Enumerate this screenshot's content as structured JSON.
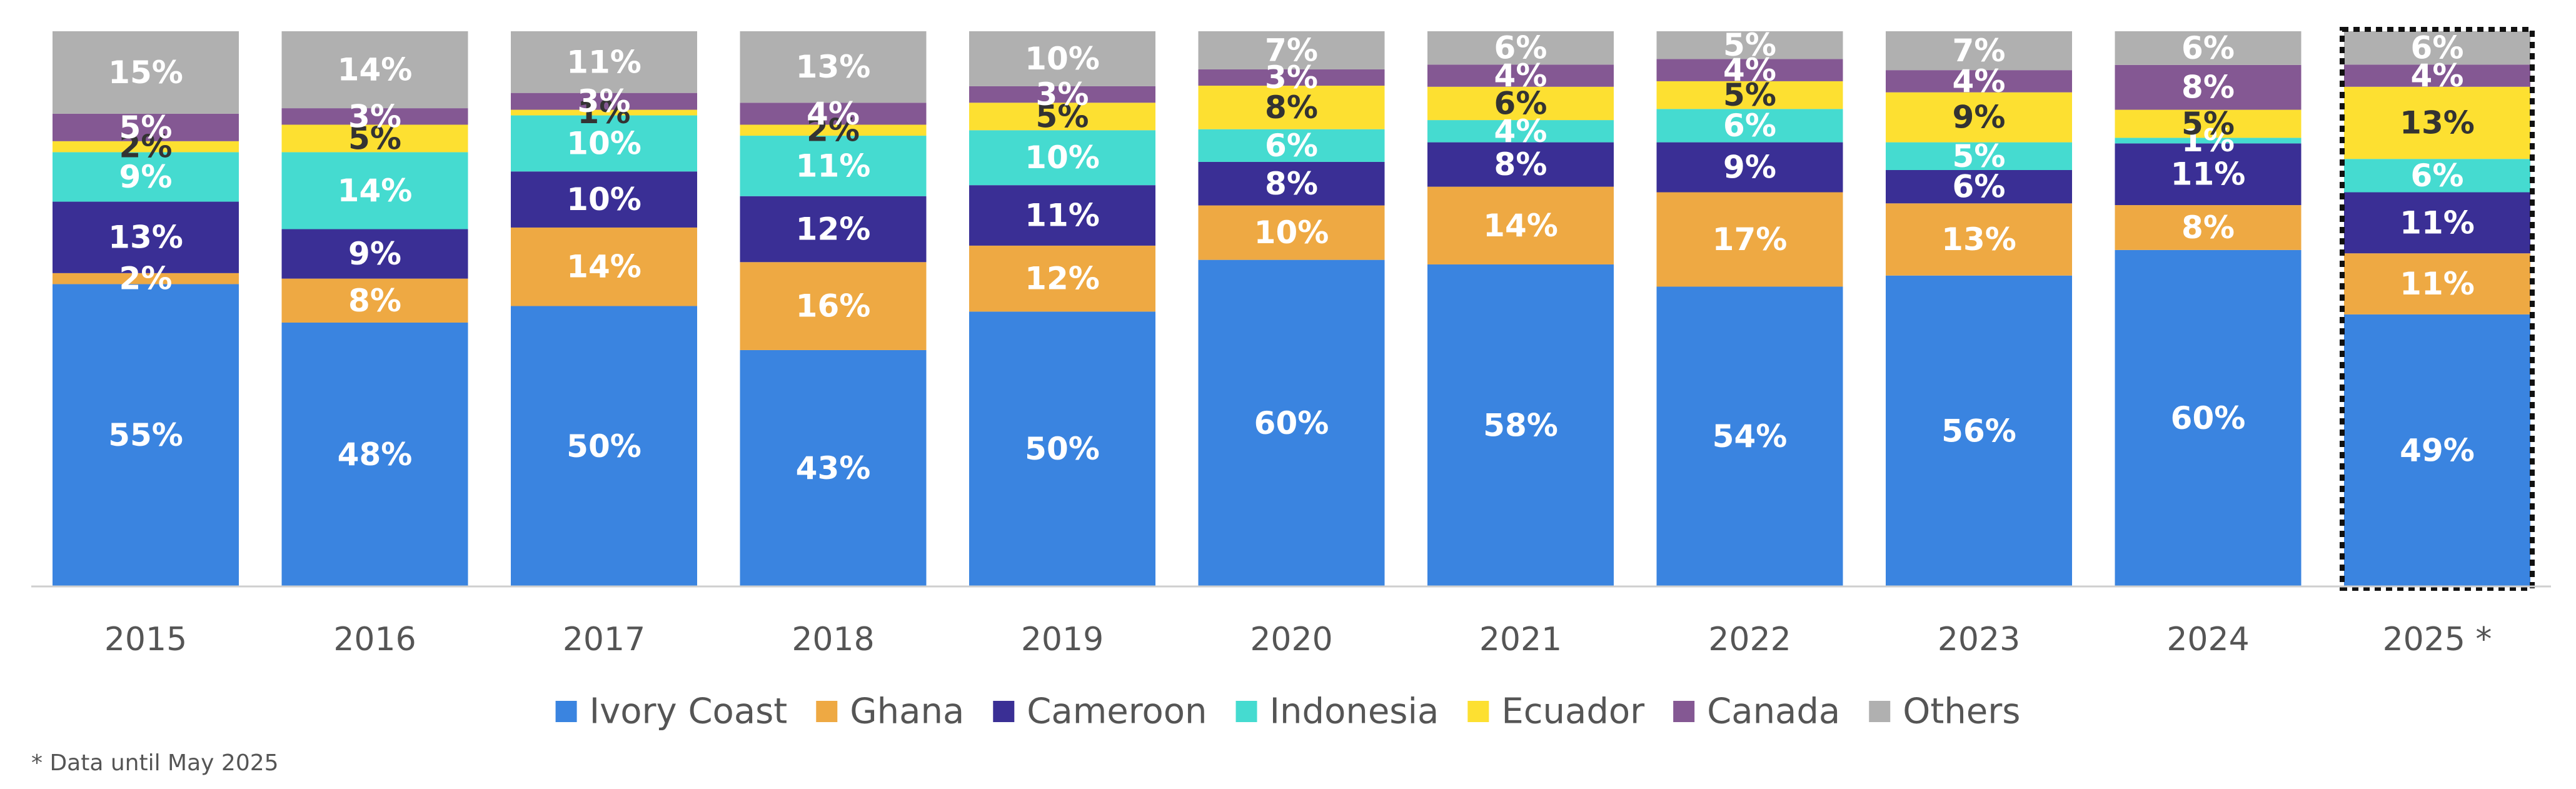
{
  "chart_data": {
    "type": "bar",
    "stacked": true,
    "percent_stacked": true,
    "categories": [
      "2015",
      "2016",
      "2017",
      "2018",
      "2019",
      "2020",
      "2021",
      "2022",
      "2023",
      "2024",
      "2025 *"
    ],
    "series": [
      {
        "name": "Ivory Coast",
        "color": "#3a84e0",
        "label_color": "#ffffff",
        "values": [
          55,
          48,
          50,
          43,
          50,
          60,
          58,
          54,
          56,
          60,
          49
        ]
      },
      {
        "name": "Ghana",
        "color": "#eea943",
        "label_color": "#ffffff",
        "values": [
          2,
          8,
          14,
          16,
          12,
          10,
          14,
          17,
          13,
          8,
          11
        ]
      },
      {
        "name": "Cameroon",
        "color": "#3a2f95",
        "label_color": "#ffffff",
        "values": [
          13,
          9,
          10,
          12,
          11,
          8,
          8,
          9,
          6,
          11,
          11
        ]
      },
      {
        "name": "Indonesia",
        "color": "#45dbd0",
        "label_color": "#ffffff",
        "values": [
          9,
          14,
          10,
          11,
          10,
          6,
          4,
          6,
          5,
          1,
          6
        ]
      },
      {
        "name": "Ecuador",
        "color": "#fde031",
        "label_color": "#333333",
        "values": [
          2,
          5,
          1,
          2,
          5,
          8,
          6,
          5,
          9,
          5,
          13
        ]
      },
      {
        "name": "Canada",
        "color": "#845893",
        "label_color": "#ffffff",
        "values": [
          5,
          3,
          3,
          4,
          3,
          3,
          4,
          4,
          4,
          8,
          4
        ]
      },
      {
        "name": "Others",
        "color": "#b0b0b0",
        "label_color": "#ffffff",
        "values": [
          15,
          14,
          11,
          13,
          10,
          7,
          6,
          5,
          7,
          6,
          6
        ]
      }
    ],
    "value_suffix": "%",
    "ylim": [
      0,
      100
    ],
    "highlighted_category": "2025 *",
    "legend_position": "bottom",
    "grid": false,
    "xlabel": "",
    "ylabel": ""
  },
  "footnote": "* Data until May 2025"
}
